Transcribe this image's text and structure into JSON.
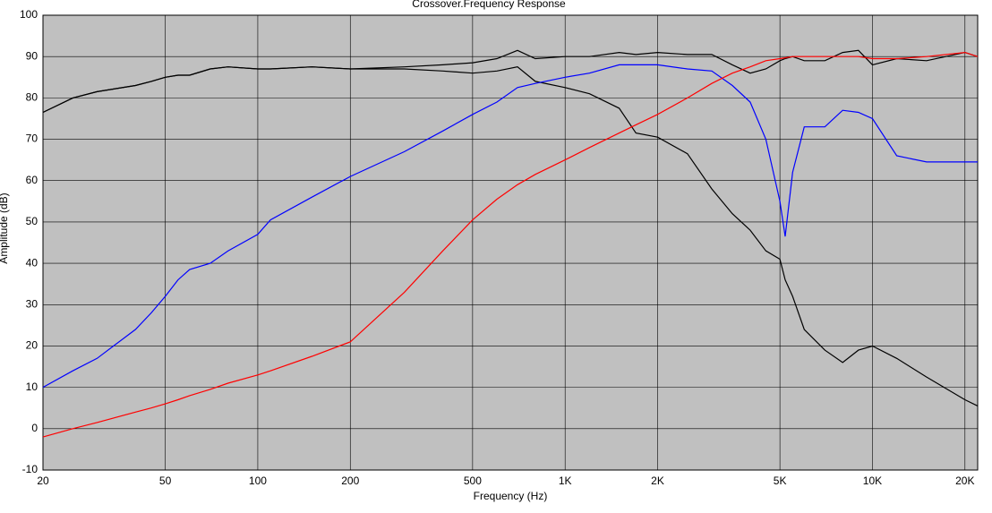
{
  "chart_data": {
    "type": "line",
    "title": "Crossover.Frequency Response",
    "x_label": "Frequency (Hz)",
    "y_label": "Amplitude (dB)",
    "log_x": true,
    "grid": true,
    "x": [
      20,
      25,
      30,
      40,
      45,
      50,
      55,
      60,
      70,
      80,
      100,
      110,
      150,
      200,
      300,
      400,
      500,
      600,
      700,
      800,
      1000,
      1200,
      1500,
      1700,
      2000,
      2500,
      3000,
      3500,
      4000,
      4500,
      5000,
      5200,
      5500,
      6000,
      7000,
      8000,
      9000,
      10000,
      12000,
      15000,
      20000,
      22000
    ],
    "series": [
      {
        "color": "#000000",
        "values": [
          76.5,
          80,
          81.5,
          83,
          84,
          85,
          85.5,
          85.5,
          87,
          87.5,
          87,
          87,
          87.5,
          87,
          87.5,
          88,
          88.5,
          89.5,
          91.5,
          89.5,
          90,
          90,
          91,
          90.5,
          91,
          90.5,
          90.5,
          88,
          86,
          87,
          89,
          89.5,
          90,
          89,
          89,
          91,
          91.5,
          88,
          89.5,
          89,
          91,
          90
        ]
      },
      {
        "color": "#000000",
        "values": [
          76.5,
          80,
          81.5,
          83,
          84,
          85,
          85.5,
          85.5,
          87,
          87.5,
          87,
          87,
          87.5,
          87,
          87,
          86.5,
          86,
          86.5,
          87.5,
          84,
          82.5,
          81,
          77.5,
          71.5,
          70.5,
          66.5,
          58,
          52,
          48,
          43,
          41,
          36,
          32,
          24,
          19,
          16,
          19,
          20,
          17,
          12.5,
          7,
          5.5
        ]
      },
      {
        "color": "#0000ff",
        "values": [
          10,
          14,
          17,
          24,
          28,
          32,
          36,
          38.5,
          40,
          43,
          47,
          50.5,
          56,
          61,
          67,
          72,
          76,
          79,
          82.5,
          83.5,
          85,
          86,
          88,
          88,
          88,
          87,
          86.5,
          83,
          79,
          70,
          55,
          46.5,
          62,
          73,
          73,
          77,
          76.5,
          75,
          66,
          64.5,
          64.5,
          64.5
        ]
      },
      {
        "color": "#ff0000",
        "values": [
          -2,
          0,
          1.5,
          4,
          5,
          6,
          7,
          8,
          9.5,
          11,
          13,
          14,
          17.5,
          21,
          33,
          43,
          50.5,
          55.5,
          59,
          61.5,
          65,
          68,
          71.5,
          73.5,
          76,
          80,
          83.5,
          86,
          87.5,
          89,
          89.5,
          89.7,
          90,
          90,
          90,
          90,
          90,
          89.5,
          89.5,
          90,
          91,
          90
        ]
      }
    ],
    "xlim": [
      20,
      22000
    ],
    "xticks": [
      20,
      50,
      100,
      200,
      500,
      {
        "value": 1000,
        "label": "1K"
      },
      {
        "value": 2000,
        "label": "2K"
      },
      {
        "value": 5000,
        "label": "5K"
      },
      {
        "value": 10000,
        "label": "10K"
      },
      {
        "value": 20000,
        "label": "20K"
      }
    ],
    "ylim": [
      -10,
      100
    ],
    "yticks": [
      -10,
      0,
      10,
      20,
      30,
      40,
      50,
      60,
      70,
      80,
      90,
      100
    ]
  }
}
